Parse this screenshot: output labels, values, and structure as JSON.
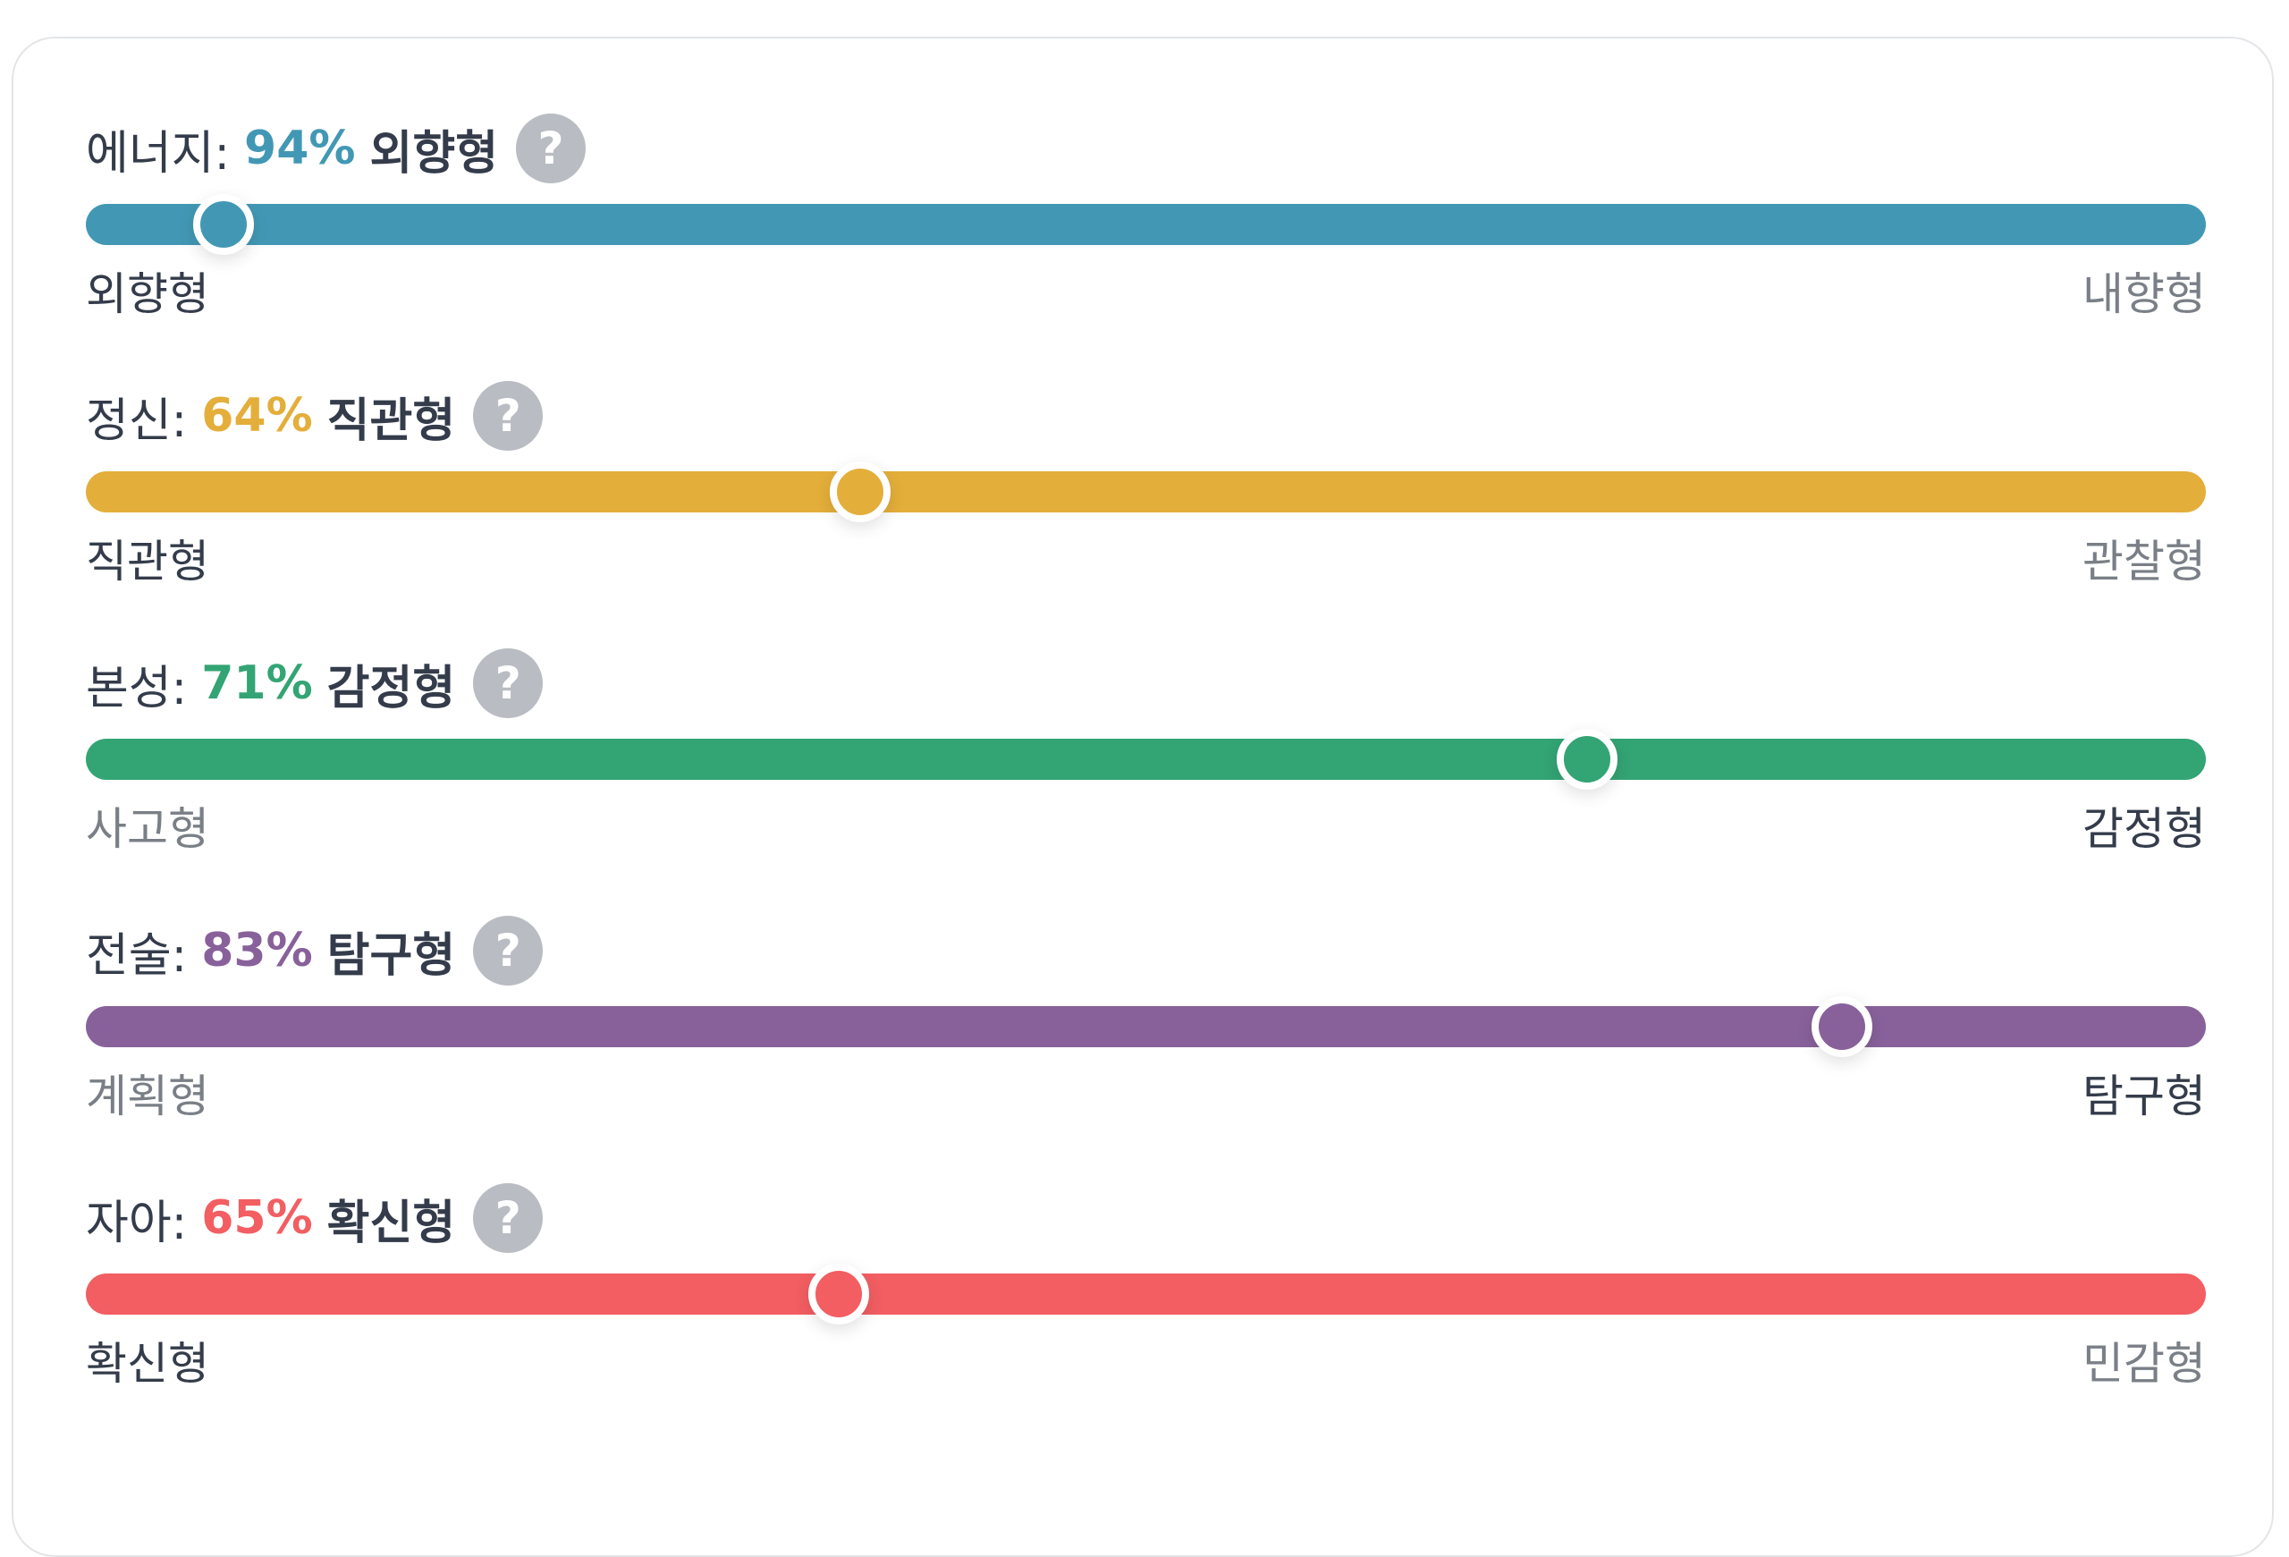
{
  "traits": [
    {
      "name": "에너지:",
      "percent": "94%",
      "value": 94,
      "trait": "외향형",
      "left": "외향형",
      "right": "내향형",
      "dominant": "left",
      "color": "#4298b4"
    },
    {
      "name": "정신:",
      "percent": "64%",
      "value": 64,
      "trait": "직관형",
      "left": "직관형",
      "right": "관찰형",
      "dominant": "left",
      "color": "#e4ae3a"
    },
    {
      "name": "본성:",
      "percent": "71%",
      "value": 71,
      "trait": "감정형",
      "left": "사고형",
      "right": "감정형",
      "dominant": "right",
      "color": "#33a474"
    },
    {
      "name": "전술:",
      "percent": "83%",
      "value": 83,
      "trait": "탐구형",
      "left": "계획형",
      "right": "탐구형",
      "dominant": "right",
      "color": "#88619a"
    },
    {
      "name": "자아:",
      "percent": "65%",
      "value": 65,
      "trait": "확신형",
      "left": "확신형",
      "right": "민감형",
      "dominant": "left",
      "color": "#f25e62"
    }
  ],
  "help_icon": "question-mark-icon",
  "help_label": "?"
}
